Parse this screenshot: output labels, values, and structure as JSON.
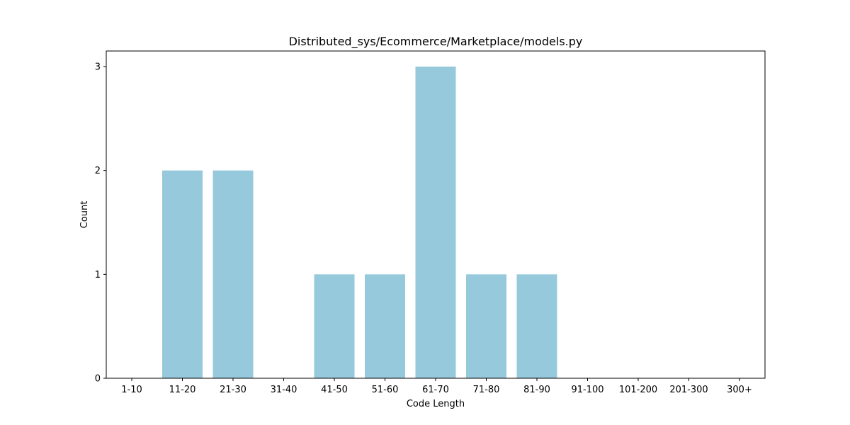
{
  "chart_data": {
    "type": "bar",
    "title": "Distributed_sys/Ecommerce/Marketplace/models.py",
    "xlabel": "Code Length",
    "ylabel": "Count",
    "categories": [
      "1-10",
      "11-20",
      "21-30",
      "31-40",
      "41-50",
      "51-60",
      "61-70",
      "71-80",
      "81-90",
      "91-100",
      "101-200",
      "201-300",
      "300+"
    ],
    "values": [
      0,
      2,
      2,
      0,
      1,
      1,
      3,
      1,
      1,
      0,
      0,
      0,
      0
    ],
    "ylim": [
      0,
      3.15
    ],
    "yticks": [
      0,
      1,
      2,
      3
    ],
    "bar_color": "#96c9dc",
    "grid": false,
    "legend": "none"
  }
}
